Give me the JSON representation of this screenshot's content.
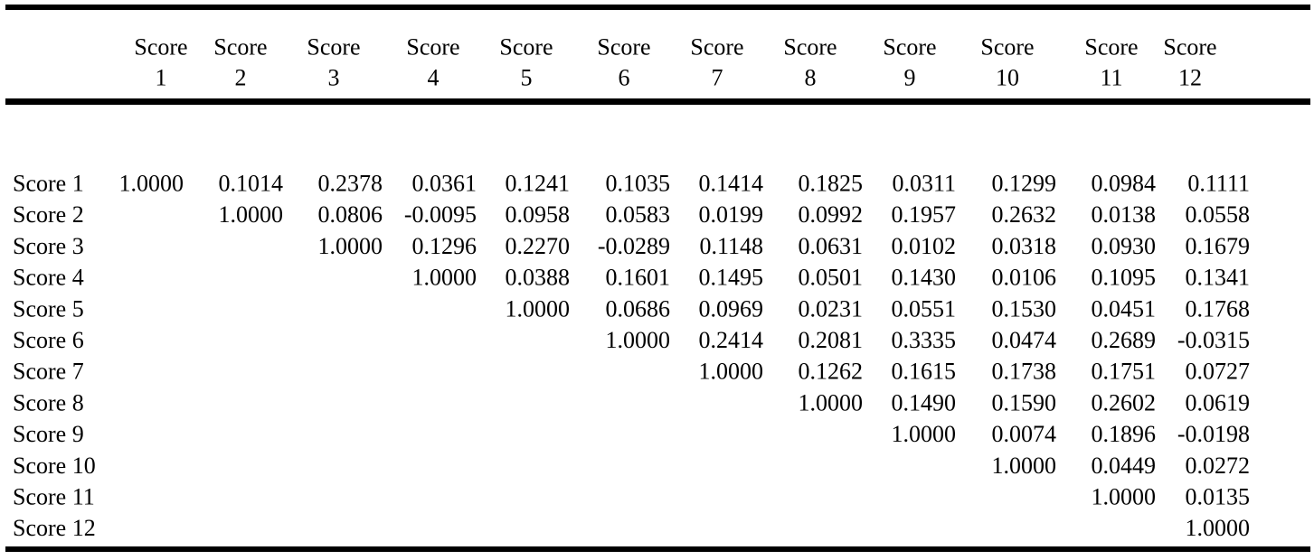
{
  "table": {
    "headers": [
      [
        "Score",
        "1"
      ],
      [
        "Score",
        "2"
      ],
      [
        "Score",
        "3"
      ],
      [
        "Score",
        "4"
      ],
      [
        "Score",
        "5"
      ],
      [
        "Score",
        "6"
      ],
      [
        "Score",
        "7"
      ],
      [
        "Score",
        "8"
      ],
      [
        "Score",
        "9"
      ],
      [
        "Score",
        "10"
      ],
      [
        "Score",
        "11"
      ],
      [
        "Score",
        "12"
      ]
    ],
    "rows": [
      {
        "label": "Score 1",
        "values": [
          "1.0000",
          "0.1014",
          "0.2378",
          "0.0361",
          "0.1241",
          "0.1035",
          "0.1414",
          "0.1825",
          "0.0311",
          "0.1299",
          "0.0984",
          "0.1111"
        ]
      },
      {
        "label": "Score 2",
        "values": [
          "1.0000",
          "0.0806",
          "-0.0095",
          "0.0958",
          "0.0583",
          "0.0199",
          "0.0992",
          "0.1957",
          "0.2632",
          "0.0138",
          "0.0558"
        ]
      },
      {
        "label": "Score 3",
        "values": [
          "1.0000",
          "0.1296",
          "0.2270",
          "-0.0289",
          "0.1148",
          "0.0631",
          "0.0102",
          "0.0318",
          "0.0930",
          "0.1679"
        ]
      },
      {
        "label": "Score 4",
        "values": [
          "1.0000",
          "0.0388",
          "0.1601",
          "0.1495",
          "0.0501",
          "0.1430",
          "0.0106",
          "0.1095",
          "0.1341"
        ]
      },
      {
        "label": "Score 5",
        "values": [
          "1.0000",
          "0.0686",
          "0.0969",
          "0.0231",
          "0.0551",
          "0.1530",
          "0.0451",
          "0.1768"
        ]
      },
      {
        "label": "Score 6",
        "values": [
          "1.0000",
          "0.2414",
          "0.2081",
          "0.3335",
          "0.0474",
          "0.2689",
          "-0.0315"
        ]
      },
      {
        "label": "Score 7",
        "values": [
          "1.0000",
          "0.1262",
          "0.1615",
          "0.1738",
          "0.1751",
          "0.0727"
        ]
      },
      {
        "label": "Score 8",
        "values": [
          "1.0000",
          "0.1490",
          "0.1590",
          "0.2602",
          "0.0619"
        ]
      },
      {
        "label": "Score 9",
        "values": [
          "1.0000",
          "0.0074",
          "0.1896",
          "-0.0198"
        ]
      },
      {
        "label": "Score 10",
        "values": [
          "1.0000",
          "0.0449",
          "0.0272"
        ]
      },
      {
        "label": "Score 11",
        "values": [
          "1.0000",
          "0.0135"
        ]
      },
      {
        "label": "Score 12",
        "values": [
          "1.0000"
        ]
      }
    ]
  }
}
